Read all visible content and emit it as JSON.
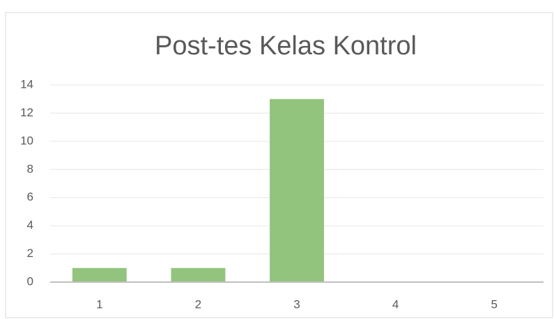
{
  "chart_data": {
    "type": "bar",
    "title": "Post-tes Kelas Kontrol",
    "categories": [
      "1",
      "2",
      "3",
      "4",
      "5"
    ],
    "values": [
      1,
      1,
      13,
      0,
      0
    ],
    "color": "#93c47d",
    "ylim": [
      0,
      14
    ],
    "yticks": [
      0,
      2,
      4,
      6,
      8,
      10,
      12,
      14
    ],
    "grid": true
  }
}
